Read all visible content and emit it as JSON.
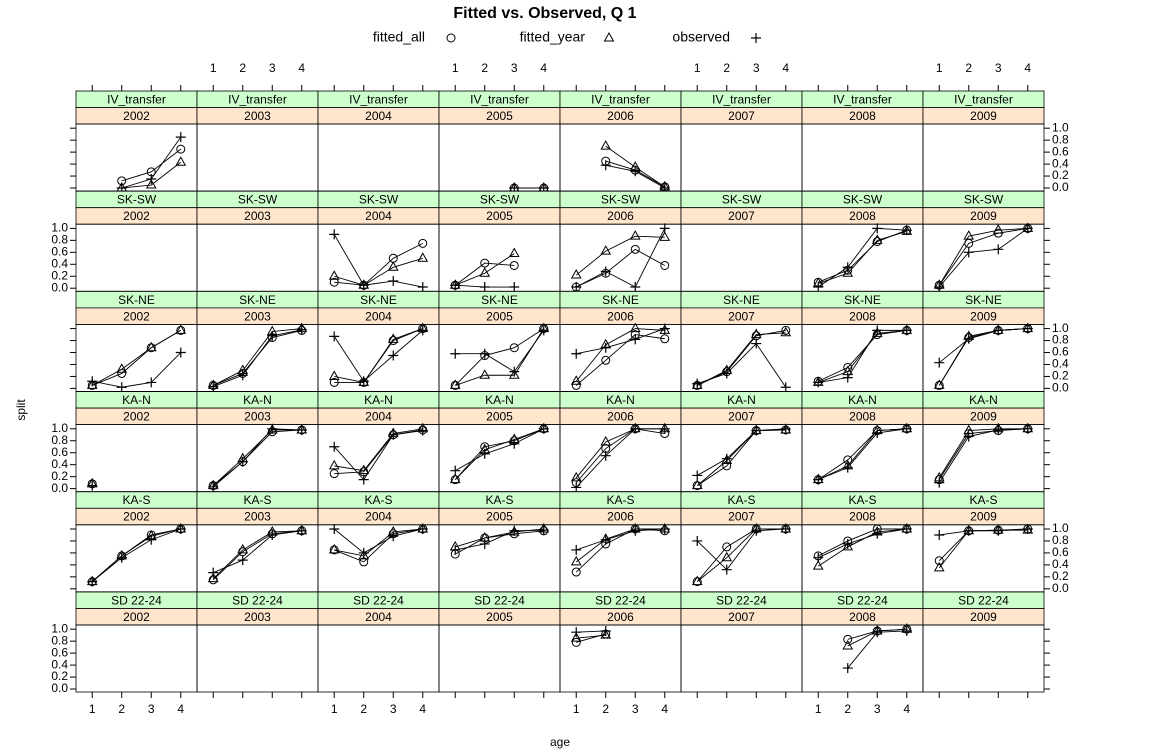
{
  "chart_data": {
    "type": "lattice",
    "title": "Fitted vs. Observed, Q 1",
    "xlabel": "age",
    "ylabel": "split",
    "x": [
      1,
      2,
      3,
      4
    ],
    "xlim": [
      0.45,
      4.55
    ],
    "ylim": [
      -0.05,
      1.07
    ],
    "xticks": [
      1,
      2,
      3,
      4
    ],
    "yticks": [
      {
        "value": 0,
        "label": "0.0"
      },
      0.2,
      0.4,
      0.6,
      0.8,
      {
        "value": 1,
        "label": "1.0"
      }
    ],
    "strip_colors": [
      "#ccffcc",
      "#ffe5cc"
    ],
    "series": [
      {
        "name": "fitted_all",
        "symbol": "circle",
        "color": "#000000"
      },
      {
        "name": "fitted_year",
        "symbol": "triangle",
        "color": "#000000"
      },
      {
        "name": "observed",
        "symbol": "plus",
        "color": "#000000"
      }
    ],
    "rows": [
      "IV_transfer",
      "SK-SW",
      "SK-NE",
      "KA-N",
      "KA-S",
      "SD 22-24"
    ],
    "columns": [
      "2002",
      "2003",
      "2004",
      "2005",
      "2006",
      "2007",
      "2008",
      "2009"
    ],
    "panels": [
      [
        [
          [
            null,
            0.12,
            0.27,
            0.65
          ],
          [
            null,
            0.0,
            0.05,
            0.43
          ],
          [
            null,
            0.0,
            0.15,
            0.85
          ]
        ],
        [],
        [],
        [
          [
            null,
            null,
            0,
            0
          ],
          [
            null,
            null,
            0,
            0
          ],
          [
            null,
            null,
            0,
            0
          ]
        ],
        [
          [
            null,
            0.45,
            0.3,
            0.02
          ],
          [
            null,
            0.7,
            0.35,
            0.02
          ],
          [
            null,
            0.38,
            0.28,
            0.0
          ]
        ],
        [],
        [],
        []
      ],
      [
        [],
        [],
        [
          [
            0.1,
            0.05,
            0.5,
            0.75
          ],
          [
            0.2,
            0.05,
            0.35,
            0.5
          ],
          [
            0.9,
            0.05,
            0.12,
            0.02
          ]
        ],
        [
          [
            0.05,
            0.42,
            0.38,
            null
          ],
          [
            0.05,
            0.25,
            0.58,
            null
          ],
          [
            0.05,
            0.02,
            0.02,
            null
          ]
        ],
        [
          [
            0.02,
            0.25,
            0.65,
            0.38
          ],
          [
            0.22,
            0.62,
            0.87,
            0.85
          ],
          [
            0.02,
            0.28,
            0.02,
            1.0
          ]
        ],
        [],
        [
          [
            0.1,
            0.3,
            0.78,
            0.97
          ],
          [
            0.08,
            0.25,
            0.8,
            0.95
          ],
          [
            0.02,
            0.35,
            1.0,
            0.97
          ]
        ],
        [
          [
            0.05,
            0.75,
            0.92,
            1.0
          ],
          [
            0.05,
            0.87,
            0.97,
            1.0
          ],
          [
            0.02,
            0.6,
            0.65,
            1.0
          ]
        ]
      ],
      [
        [
          [
            0.05,
            0.25,
            0.68,
            0.97
          ],
          [
            0.05,
            0.32,
            0.68,
            0.97
          ],
          [
            0.12,
            0.02,
            0.1,
            0.6
          ]
        ],
        [
          [
            0.05,
            0.25,
            0.85,
            0.97
          ],
          [
            0.05,
            0.3,
            0.95,
            1.0
          ],
          [
            0.03,
            0.22,
            0.88,
            0.98
          ]
        ],
        [
          [
            0.1,
            0.1,
            0.8,
            1.0
          ],
          [
            0.2,
            0.1,
            0.82,
            1.0
          ],
          [
            0.87,
            0.12,
            0.55,
            0.97
          ]
        ],
        [
          [
            0.05,
            0.55,
            0.68,
            1.0
          ],
          [
            0.05,
            0.22,
            0.22,
            1.0
          ],
          [
            0.58,
            0.58,
            0.28,
            0.97
          ]
        ],
        [
          [
            0.05,
            0.47,
            0.9,
            0.83
          ],
          [
            0.12,
            0.73,
            1.0,
            0.97
          ],
          [
            0.58,
            0.68,
            0.82,
            1.0
          ]
        ],
        [
          [
            0.05,
            0.28,
            0.88,
            0.97
          ],
          [
            0.05,
            0.3,
            0.9,
            0.93
          ],
          [
            0.08,
            0.25,
            0.75,
            0.02
          ]
        ],
        [
          [
            0.12,
            0.35,
            0.9,
            0.97
          ],
          [
            0.1,
            0.28,
            0.92,
            0.97
          ],
          [
            0.1,
            0.18,
            0.97,
            0.97
          ]
        ],
        [
          [
            0.05,
            0.85,
            0.97,
            1.0
          ],
          [
            0.05,
            0.87,
            0.97,
            1.0
          ],
          [
            0.43,
            0.83,
            0.97,
            1.0
          ]
        ]
      ],
      [
        [
          [
            0.08,
            null,
            null,
            null
          ],
          [
            0.08,
            null,
            null,
            null
          ],
          [
            0.05,
            null,
            null,
            null
          ]
        ],
        [
          [
            0.05,
            0.45,
            0.95,
            0.98
          ],
          [
            0.05,
            0.5,
            0.98,
            0.98
          ],
          [
            0.03,
            0.45,
            1.0,
            0.98
          ]
        ],
        [
          [
            0.25,
            0.28,
            0.9,
            0.98
          ],
          [
            0.38,
            0.3,
            0.92,
            1.0
          ],
          [
            0.7,
            0.15,
            0.9,
            0.97
          ]
        ],
        [
          [
            0.15,
            0.7,
            0.8,
            1.0
          ],
          [
            0.15,
            0.65,
            0.82,
            1.0
          ],
          [
            0.3,
            0.58,
            0.75,
            1.0
          ]
        ],
        [
          [
            0.1,
            0.67,
            1.0,
            0.92
          ],
          [
            0.18,
            0.78,
            1.0,
            1.0
          ],
          [
            0.02,
            0.55,
            1.0,
            1.0
          ]
        ],
        [
          [
            0.05,
            0.38,
            0.97,
            0.98
          ],
          [
            0.05,
            0.47,
            0.97,
            0.98
          ],
          [
            0.22,
            0.5,
            0.97,
            1.0
          ]
        ],
        [
          [
            0.15,
            0.48,
            0.97,
            1.0
          ],
          [
            0.15,
            0.38,
            0.97,
            1.0
          ],
          [
            0.15,
            0.35,
            0.93,
            1.0
          ]
        ],
        [
          [
            0.15,
            0.92,
            0.97,
            1.0
          ],
          [
            0.18,
            0.97,
            1.0,
            1.0
          ],
          [
            0.1,
            0.87,
            0.98,
            1.0
          ]
        ]
      ],
      [
        [
          [
            0.12,
            0.55,
            0.9,
            1.0
          ],
          [
            0.12,
            0.55,
            0.88,
            1.0
          ],
          [
            0.12,
            0.52,
            0.82,
            1.0
          ]
        ],
        [
          [
            0.15,
            0.62,
            0.92,
            0.97
          ],
          [
            0.17,
            0.65,
            0.95,
            0.97
          ],
          [
            0.27,
            0.48,
            0.9,
            0.97
          ]
        ],
        [
          [
            0.65,
            0.45,
            0.92,
            1.0
          ],
          [
            0.65,
            0.55,
            0.95,
            1.0
          ],
          [
            1.0,
            0.6,
            0.88,
            1.0
          ]
        ],
        [
          [
            0.58,
            0.85,
            0.92,
            0.97
          ],
          [
            0.7,
            0.85,
            0.95,
            1.0
          ],
          [
            0.65,
            0.75,
            0.97,
            0.98
          ]
        ],
        [
          [
            0.28,
            0.75,
            1.0,
            0.97
          ],
          [
            0.45,
            0.83,
            1.0,
            1.0
          ],
          [
            0.65,
            0.82,
            0.97,
            1.0
          ]
        ],
        [
          [
            0.12,
            0.7,
            1.0,
            1.0
          ],
          [
            0.12,
            0.52,
            1.0,
            1.0
          ],
          [
            0.8,
            0.32,
            0.97,
            1.0
          ]
        ],
        [
          [
            0.55,
            0.8,
            1.0,
            1.0
          ],
          [
            0.38,
            0.7,
            0.95,
            1.0
          ],
          [
            0.52,
            0.75,
            0.92,
            1.0
          ]
        ],
        [
          [
            0.47,
            0.97,
            0.98,
            1.0
          ],
          [
            0.35,
            0.97,
            0.98,
            0.98
          ],
          [
            0.9,
            0.97,
            0.97,
            1.0
          ]
        ]
      ],
      [
        [],
        [],
        [],
        [],
        [
          [
            0.78,
            0.92,
            null,
            null
          ],
          [
            0.85,
            0.9,
            null,
            null
          ],
          [
            0.95,
            0.97,
            null,
            null
          ]
        ],
        [],
        [
          [
            null,
            0.83,
            0.97,
            1.0
          ],
          [
            null,
            0.72,
            0.97,
            1.0
          ],
          [
            null,
            0.35,
            0.95,
            0.97
          ]
        ],
        []
      ]
    ]
  }
}
